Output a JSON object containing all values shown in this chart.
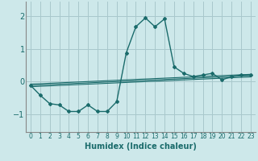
{
  "xlabel": "Humidex (Indice chaleur)",
  "background_color": "#cde8ea",
  "grid_color": "#a8c8cc",
  "line_color": "#1a6b6b",
  "spine_color": "#888888",
  "xlim": [
    -0.5,
    23.5
  ],
  "ylim": [
    -1.55,
    2.45
  ],
  "yticks": [
    -1,
    0,
    1,
    2
  ],
  "xticks": [
    0,
    1,
    2,
    3,
    4,
    5,
    6,
    7,
    8,
    9,
    10,
    11,
    12,
    13,
    14,
    15,
    16,
    17,
    18,
    19,
    20,
    21,
    22,
    23
  ],
  "main_x": [
    0,
    1,
    2,
    3,
    4,
    5,
    6,
    7,
    8,
    9,
    10,
    11,
    12,
    13,
    14,
    15,
    16,
    17,
    18,
    19,
    20,
    21,
    22,
    23
  ],
  "main_y": [
    -0.12,
    -0.42,
    -0.68,
    -0.72,
    -0.92,
    -0.92,
    -0.72,
    -0.92,
    -0.92,
    -0.62,
    0.88,
    1.68,
    1.95,
    1.68,
    1.92,
    0.45,
    0.25,
    0.15,
    0.2,
    0.25,
    0.05,
    0.15,
    0.2,
    0.2
  ],
  "line1_x": [
    0,
    23
  ],
  "line1_y": [
    -0.12,
    0.18
  ],
  "line2_x": [
    0,
    23
  ],
  "line2_y": [
    -0.08,
    0.22
  ],
  "line3_x": [
    0,
    23
  ],
  "line3_y": [
    -0.16,
    0.14
  ],
  "xlabel_fontsize": 7,
  "xtick_fontsize": 5.5,
  "ytick_fontsize": 7
}
